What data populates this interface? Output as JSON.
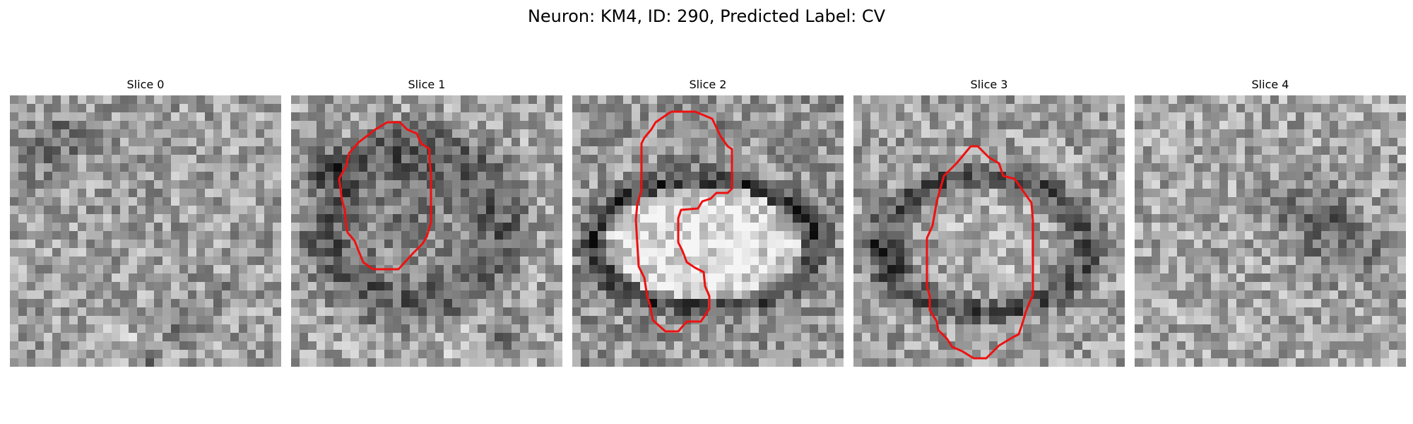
{
  "figure": {
    "title": "Neuron: KM4, ID: 290, Predicted Label: CV"
  },
  "colors": {
    "contour": "#ee1111",
    "background": "#ffffff"
  },
  "slices": [
    {
      "title": "Slice 0",
      "has_contour": false
    },
    {
      "title": "Slice 1",
      "has_contour": true
    },
    {
      "title": "Slice 2",
      "has_contour": true
    },
    {
      "title": "Slice 3",
      "has_contour": true
    },
    {
      "title": "Slice 4",
      "has_contour": false
    }
  ]
}
